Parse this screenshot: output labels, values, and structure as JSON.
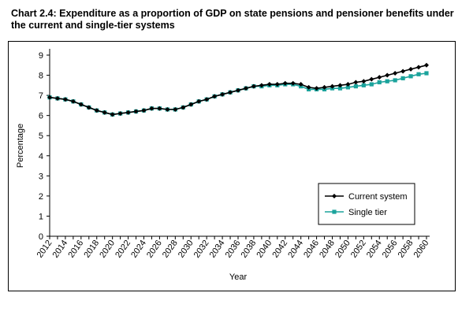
{
  "chart_data": {
    "type": "line",
    "title": "Chart 2.4: Expenditure as a proportion of GDP on state pensions and pensioner benefits under the current and single-tier systems",
    "xlabel": "Year",
    "ylabel": "Percentage",
    "ylim": [
      0,
      9
    ],
    "yticks": [
      0,
      1,
      2,
      3,
      4,
      5,
      6,
      7,
      8,
      9
    ],
    "xrange": [
      2012,
      2060
    ],
    "xticklabels": [
      "2012",
      "2014",
      "2016",
      "2018",
      "2020",
      "2022",
      "2024",
      "2026",
      "2028",
      "2030",
      "2032",
      "2034",
      "2036",
      "2038",
      "2040",
      "2042",
      "2044",
      "2046",
      "2048",
      "2050",
      "2052",
      "2054",
      "2056",
      "2058",
      "2060"
    ],
    "legend_position": "bottom-right",
    "series": [
      {
        "name": "Current system",
        "color": "#000000",
        "marker": "diamond",
        "x": [
          2012,
          2013,
          2014,
          2015,
          2016,
          2017,
          2018,
          2019,
          2020,
          2021,
          2022,
          2023,
          2024,
          2025,
          2026,
          2027,
          2028,
          2029,
          2030,
          2031,
          2032,
          2033,
          2034,
          2035,
          2036,
          2037,
          2038,
          2039,
          2040,
          2041,
          2042,
          2043,
          2044,
          2045,
          2046,
          2047,
          2048,
          2049,
          2050,
          2051,
          2052,
          2053,
          2054,
          2055,
          2056,
          2057,
          2058,
          2059,
          2060
        ],
        "values": [
          6.9,
          6.85,
          6.8,
          6.7,
          6.55,
          6.4,
          6.25,
          6.15,
          6.05,
          6.1,
          6.15,
          6.2,
          6.25,
          6.35,
          6.35,
          6.3,
          6.3,
          6.4,
          6.55,
          6.7,
          6.8,
          6.95,
          7.05,
          7.15,
          7.25,
          7.35,
          7.45,
          7.5,
          7.55,
          7.55,
          7.6,
          7.6,
          7.55,
          7.4,
          7.35,
          7.4,
          7.45,
          7.5,
          7.55,
          7.65,
          7.7,
          7.8,
          7.9,
          8.0,
          8.1,
          8.2,
          8.3,
          8.4,
          8.5
        ]
      },
      {
        "name": "Single tier",
        "color": "#1ba39c",
        "marker": "square",
        "x": [
          2012,
          2013,
          2014,
          2015,
          2016,
          2017,
          2018,
          2019,
          2020,
          2021,
          2022,
          2023,
          2024,
          2025,
          2026,
          2027,
          2028,
          2029,
          2030,
          2031,
          2032,
          2033,
          2034,
          2035,
          2036,
          2037,
          2038,
          2039,
          2040,
          2041,
          2042,
          2043,
          2044,
          2045,
          2046,
          2047,
          2048,
          2049,
          2050,
          2051,
          2052,
          2053,
          2054,
          2055,
          2056,
          2057,
          2058,
          2059,
          2060
        ],
        "values": [
          6.9,
          6.85,
          6.8,
          6.7,
          6.55,
          6.4,
          6.25,
          6.15,
          6.05,
          6.1,
          6.15,
          6.2,
          6.25,
          6.35,
          6.35,
          6.3,
          6.3,
          6.4,
          6.55,
          6.7,
          6.8,
          6.95,
          7.05,
          7.15,
          7.25,
          7.35,
          7.45,
          7.45,
          7.5,
          7.5,
          7.55,
          7.55,
          7.45,
          7.3,
          7.3,
          7.3,
          7.35,
          7.35,
          7.4,
          7.45,
          7.5,
          7.55,
          7.65,
          7.7,
          7.75,
          7.85,
          7.95,
          8.05,
          8.1
        ]
      }
    ]
  }
}
